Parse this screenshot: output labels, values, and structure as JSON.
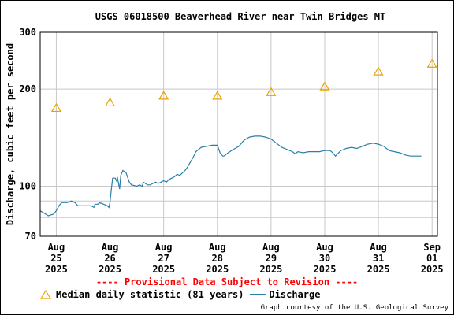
{
  "chart_data": {
    "type": "line",
    "title": "USGS 06018500 Beaverhead River near Twin Bridges MT",
    "ylabel": "Discharge, cubic feet per second",
    "y_scale": "log",
    "ylim": [
      70,
      300
    ],
    "y_ticks": [
      {
        "value": 70,
        "label": "70",
        "major": true
      },
      {
        "value": 80,
        "label": "",
        "major": false
      },
      {
        "value": 90,
        "label": "",
        "major": false
      },
      {
        "value": 100,
        "label": "100",
        "major": true
      },
      {
        "value": 200,
        "label": "200",
        "major": true
      },
      {
        "value": 300,
        "label": "300",
        "major": true
      }
    ],
    "xlim": [
      24.7,
      32.1
    ],
    "x_ticks": [
      {
        "value": 25,
        "month": "Aug",
        "day": "25",
        "year": "2025"
      },
      {
        "value": 26,
        "month": "Aug",
        "day": "26",
        "year": "2025"
      },
      {
        "value": 27,
        "month": "Aug",
        "day": "27",
        "year": "2025"
      },
      {
        "value": 28,
        "month": "Aug",
        "day": "28",
        "year": "2025"
      },
      {
        "value": 29,
        "month": "Aug",
        "day": "29",
        "year": "2025"
      },
      {
        "value": 30,
        "month": "Aug",
        "day": "30",
        "year": "2025"
      },
      {
        "value": 31,
        "month": "Aug",
        "day": "31",
        "year": "2025"
      },
      {
        "value": 32,
        "month": "Sep",
        "day": "01",
        "year": "2025"
      }
    ],
    "grid": true,
    "legend_position": "bottom-left",
    "series": [
      {
        "name": "Median daily statistic (81 years)",
        "marker": "triangle",
        "color": "#e8a200",
        "x": [
          25,
          26,
          27,
          28,
          29,
          30,
          31,
          32
        ],
        "y": [
          175,
          182,
          191,
          191,
          196,
          204,
          227,
          240
        ]
      },
      {
        "name": "Discharge",
        "marker": "line",
        "color": "#2a7fa6",
        "x": [
          24.7,
          24.8,
          24.85,
          24.95,
          25.0,
          25.05,
          25.1,
          25.2,
          25.28,
          25.35,
          25.4,
          25.5,
          25.55,
          25.65,
          25.7,
          25.72,
          25.78,
          25.8,
          25.88,
          25.95,
          25.98,
          26.0,
          26.02,
          26.05,
          26.1,
          26.12,
          26.14,
          26.18,
          26.2,
          26.24,
          26.3,
          26.36,
          26.4,
          26.5,
          26.55,
          26.6,
          26.62,
          26.7,
          26.75,
          26.8,
          26.85,
          26.9,
          26.95,
          27.0,
          27.05,
          27.1,
          27.15,
          27.2,
          27.25,
          27.3,
          27.35,
          27.4,
          27.45,
          27.5,
          27.55,
          27.6,
          27.7,
          27.8,
          27.9,
          28.0,
          28.05,
          28.1,
          28.12,
          28.15,
          28.2,
          28.3,
          28.4,
          28.5,
          28.6,
          28.7,
          28.8,
          28.9,
          29.0,
          29.1,
          29.2,
          29.3,
          29.4,
          29.45,
          29.5,
          29.6,
          29.7,
          29.8,
          29.9,
          30.0,
          30.1,
          30.15,
          30.2,
          30.3,
          30.4,
          30.5,
          30.6,
          30.7,
          30.8,
          30.9,
          31.0,
          31.1,
          31.2,
          31.3,
          31.4,
          31.5,
          31.6,
          31.7,
          31.8
        ],
        "y": [
          84,
          82,
          81,
          82,
          84,
          87,
          89,
          89,
          90,
          89,
          87,
          87,
          87,
          87,
          86,
          88,
          88,
          89,
          88,
          87,
          86,
          89,
          96,
          106,
          106,
          104,
          106,
          98,
          108,
          112,
          110,
          103,
          101,
          100,
          101,
          100,
          103,
          101,
          101,
          102,
          103,
          102,
          103,
          104,
          103,
          105,
          106,
          107,
          109,
          108,
          110,
          112,
          115,
          119,
          123,
          128,
          132,
          133,
          134,
          134,
          127,
          124,
          124,
          125,
          127,
          130,
          133,
          139,
          142,
          143,
          143,
          142,
          140,
          136,
          132,
          130,
          128,
          126,
          128,
          127,
          128,
          128,
          128,
          129,
          129,
          127,
          124,
          129,
          131,
          132,
          131,
          133,
          135,
          136,
          135,
          133,
          129,
          128,
          127,
          125,
          124,
          124,
          124
        ]
      }
    ]
  },
  "provisional_notice": "---- Provisional Data Subject to Revision ----",
  "credit": "Graph courtesy of the U.S. Geological Survey"
}
